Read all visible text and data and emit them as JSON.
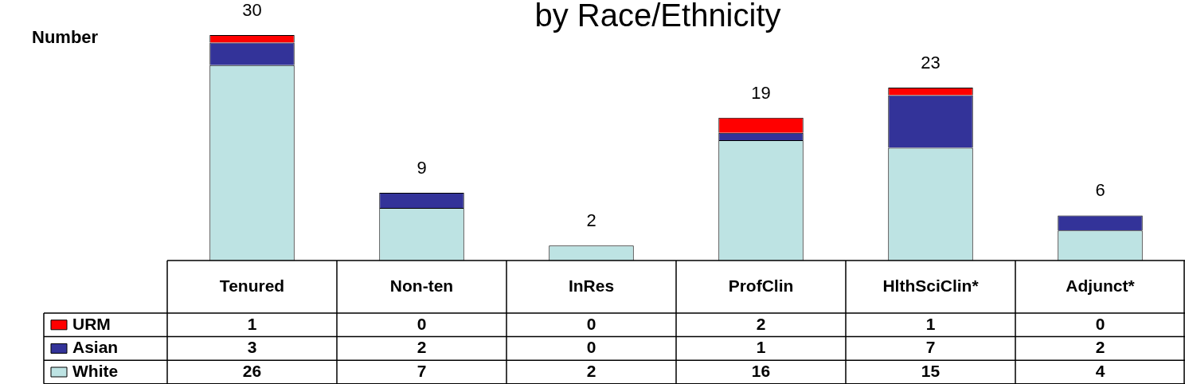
{
  "chart_data": {
    "type": "bar",
    "title": "by Race/Ethnicity",
    "ylabel": "Number",
    "stacked": true,
    "data_labels": true,
    "legend": "left",
    "categories": [
      "Tenured",
      "Non-ten",
      "InRes",
      "ProfClin",
      "HlthSciClin*",
      "Adjunct*"
    ],
    "series": [
      {
        "name": "White",
        "color": "#bde3e3",
        "values": [
          26,
          7,
          2,
          16,
          15,
          4
        ]
      },
      {
        "name": "Asian",
        "color": "#333399",
        "values": [
          3,
          2,
          0,
          1,
          7,
          2
        ]
      },
      {
        "name": "URM",
        "color": "#ff0000",
        "values": [
          1,
          0,
          0,
          2,
          1,
          0
        ]
      }
    ],
    "totals": [
      "30",
      "9",
      "2",
      "19",
      "23",
      "6"
    ]
  }
}
